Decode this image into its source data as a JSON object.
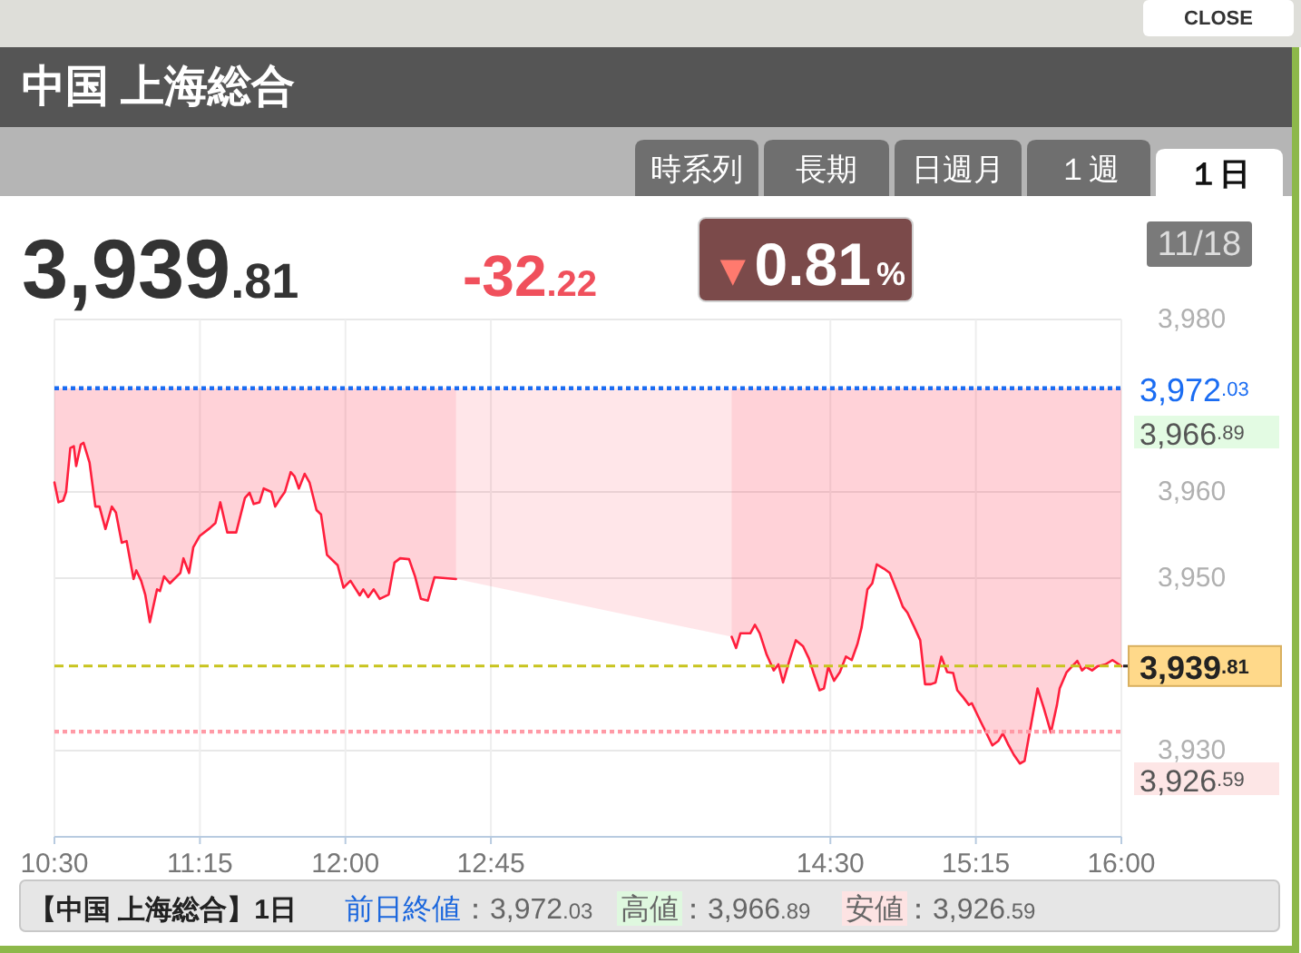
{
  "chart_data": {
    "type": "line",
    "title": "中国 上海総合",
    "x": [
      10.5,
      10.521,
      10.545,
      10.56,
      10.582,
      10.6,
      10.612,
      10.636,
      10.65,
      10.681,
      10.711,
      10.732,
      10.763,
      10.796,
      10.817,
      10.847,
      10.872,
      10.908,
      10.922,
      10.947,
      10.968,
      10.992,
      11.029,
      11.044,
      11.065,
      11.095,
      11.149,
      11.165,
      11.194,
      11.216,
      11.249,
      11.301,
      11.33,
      11.355,
      11.391,
      11.437,
      11.482,
      11.506,
      11.527,
      11.557,
      11.579,
      11.618,
      11.638,
      11.663,
      11.688,
      11.718,
      11.738,
      11.76,
      11.79,
      11.815,
      11.851,
      11.874,
      11.905,
      11.96,
      11.99,
      12.026,
      12.074,
      12.092,
      12.117,
      12.146,
      12.177,
      12.223,
      12.253,
      12.282,
      12.328,
      12.359,
      12.389,
      12.425,
      12.459,
      12.57,
      13.25,
      13.991,
      14.014,
      14.036,
      14.087,
      14.111,
      14.136,
      14.172,
      14.208,
      14.232,
      14.256,
      14.292,
      14.322,
      14.359,
      14.389,
      14.413,
      14.444,
      14.467,
      14.489,
      14.519,
      14.549,
      14.58,
      14.61,
      14.64,
      14.661,
      14.691,
      14.716,
      14.739,
      14.776,
      14.806,
      14.843,
      14.873,
      14.897,
      14.933,
      14.963,
      14.988,
      15.018,
      15.042,
      15.072,
      15.102,
      15.133,
      15.154,
      15.184,
      15.214,
      15.229,
      15.274,
      15.305,
      15.335,
      15.365,
      15.389,
      15.417,
      15.446,
      15.477,
      15.501,
      15.532,
      15.568,
      15.598,
      15.637,
      15.668,
      15.682,
      15.718,
      15.743,
      15.773,
      15.797,
      15.818,
      15.849,
      15.879,
      15.918,
      15.954,
      16.0
    ],
    "series": [
      {
        "color": "#ff1f3d",
        "values": [
          3961.1,
          3958.8,
          3959.0,
          3960.0,
          3965.1,
          3965.3,
          3963.0,
          3965.5,
          3965.7,
          3963.4,
          3958.3,
          3958.3,
          3955.7,
          3958.3,
          3957.6,
          3954.1,
          3954.3,
          3949.9,
          3950.9,
          3949.7,
          3948.1,
          3944.9,
          3948.7,
          3948.5,
          3950.2,
          3949.4,
          3950.6,
          3952.3,
          3950.6,
          3953.6,
          3954.9,
          3955.8,
          3956.4,
          3958.8,
          3955.3,
          3955.3,
          3959.3,
          3959.9,
          3958.6,
          3958.8,
          3960.4,
          3960.0,
          3958.3,
          3959.2,
          3960.0,
          3962.3,
          3961.8,
          3960.4,
          3962.1,
          3961.1,
          3957.9,
          3957.4,
          3952.7,
          3951.5,
          3948.9,
          3949.7,
          3948.0,
          3948.7,
          3947.8,
          3948.7,
          3947.6,
          3948.1,
          3951.8,
          3952.3,
          3952.2,
          3950.2,
          3947.6,
          3947.4,
          3950.1,
          3949.9,
          null,
          3943.2,
          3941.9,
          3943.6,
          3943.6,
          3944.6,
          3943.6,
          3941.1,
          3939.3,
          3940.0,
          3937.9,
          3940.7,
          3942.8,
          3942.1,
          3940.7,
          3939.0,
          3937.0,
          3937.2,
          3939.7,
          3938.1,
          3939.1,
          3940.9,
          3940.5,
          3942.4,
          3944.3,
          3948.7,
          3949.4,
          3951.6,
          3951.1,
          3950.6,
          3948.5,
          3946.7,
          3946.0,
          3944.3,
          3942.8,
          3937.7,
          3937.7,
          3937.9,
          3940.9,
          3939.1,
          3939.0,
          3937.0,
          3936.2,
          3935.3,
          3935.5,
          3933.4,
          3932.0,
          3930.6,
          3931.1,
          3932.0,
          3930.7,
          3929.5,
          3928.5,
          3928.8,
          3932.7,
          3937.2,
          3935.1,
          3932.1,
          3935.3,
          3937.2,
          3939.1,
          3939.7,
          3940.4,
          3939.3,
          3939.7,
          3939.3,
          3939.8,
          3940.0,
          3940.5,
          3939.8
        ],
        "lower": [
          3961.1,
          3958.8,
          3959.0,
          3960.0,
          3965.1,
          3965.3,
          3963.0,
          3965.5,
          3965.7,
          3963.4,
          3958.3,
          3958.3,
          3955.7,
          3958.3,
          3957.6,
          3954.1,
          3954.3,
          3949.9,
          3950.9,
          3949.7,
          3948.1,
          3944.9,
          3948.7,
          3948.5,
          3950.2,
          3949.4,
          3950.6,
          3952.3,
          3950.6,
          3953.6,
          3954.9,
          3955.8,
          3956.4,
          3958.8,
          3955.3,
          3955.3,
          3959.3,
          3959.9,
          3958.6,
          3958.8,
          3960.4,
          3960.0,
          3958.3,
          3959.2,
          3960.0,
          3962.3,
          3961.8,
          3960.4,
          3962.1,
          3961.1,
          3957.9,
          3957.4,
          3952.7,
          3951.5,
          3948.9,
          3949.7,
          3948.0,
          3948.7,
          3947.8,
          3948.7,
          3947.6,
          3948.1,
          3951.8,
          3952.3,
          3952.2,
          3950.2,
          3947.6,
          3947.4,
          3950.1,
          3949.9,
          null,
          3943.2,
          3941.9,
          3943.6,
          3943.6,
          3944.6,
          3943.6,
          3941.1,
          3939.3,
          3940.0,
          3937.9,
          3940.7,
          3942.8,
          3942.1,
          3940.7,
          3939.0,
          3937.0,
          3937.2,
          3939.7,
          3938.1,
          3939.1,
          3940.9,
          3940.5,
          3942.4,
          3944.3,
          3948.7,
          3949.4,
          3951.6,
          3951.1,
          3950.6,
          3948.5,
          3946.7,
          3946.0,
          3944.3,
          3942.8,
          3937.7,
          3937.7,
          3937.9,
          3940.9,
          3939.1,
          3939.0,
          3937.0,
          3936.2,
          3935.3,
          3935.5,
          3933.4,
          3932.0,
          3930.6,
          3931.1,
          3932.0,
          3930.7,
          3929.5,
          3928.5,
          3928.8,
          3932.7,
          3937.2,
          3935.1,
          3932.1,
          3935.3,
          3937.2,
          3939.1,
          3939.7,
          3940.4,
          3939.3,
          3939.7,
          3939.3,
          3939.8,
          3940.0,
          3940.5,
          3939.8
        ],
        "upper": [
          3972.03,
          3972.03,
          3972.03,
          3972.03,
          3972.03,
          3972.03,
          3972.03,
          3972.03,
          3972.03,
          3972.03,
          3972.03,
          3972.03,
          3972.03,
          3972.03,
          3972.03,
          3972.03,
          3972.03,
          3972.03,
          3972.03,
          3972.03,
          3972.03,
          3972.03,
          3972.03,
          3972.03,
          3972.03,
          3972.03,
          3972.03,
          3972.03,
          3972.03,
          3972.03,
          3972.03,
          3972.03,
          3972.03,
          3972.03,
          3972.03,
          3972.03,
          3972.03,
          3972.03,
          3972.03,
          3972.03,
          3972.03,
          3972.03,
          3972.03,
          3972.03,
          3972.03,
          3972.03,
          3972.03,
          3972.03,
          3972.03,
          3972.03,
          3972.03,
          3972.03,
          3972.03,
          3972.03,
          3972.03,
          3972.03,
          3972.03,
          3972.03,
          3972.03,
          3972.03,
          3972.03,
          3972.03,
          3972.03,
          3972.03,
          3972.03,
          3972.03,
          3972.03,
          3972.03,
          3972.03,
          3972.03,
          null,
          3972.03,
          3972.03,
          3972.03,
          3972.03,
          3972.03,
          3972.03,
          3972.03,
          3972.03,
          3972.03,
          3972.03,
          3972.03,
          3972.03,
          3972.03,
          3972.03,
          3972.03,
          3972.03,
          3972.03,
          3972.03,
          3972.03,
          3972.03,
          3972.03,
          3972.03,
          3972.03,
          3972.03,
          3972.03,
          3972.03,
          3972.03,
          3972.03,
          3972.03,
          3972.03,
          3972.03,
          3972.03,
          3972.03,
          3972.03,
          3972.03,
          3972.03,
          3972.03,
          3972.03,
          3972.03,
          3972.03,
          3972.03,
          3972.03,
          3972.03,
          3972.03,
          3972.03,
          3972.03,
          3972.03,
          3972.03,
          3972.03,
          3972.03,
          3972.03,
          3972.03,
          3972.03,
          3972.03,
          3972.03,
          3972.03,
          3972.03,
          3972.03,
          3972.03,
          3972.03,
          3972.03,
          3972.03,
          3972.03,
          3972.03,
          3972.03,
          3972.03,
          3972.03,
          3972.03,
          3972.03
        ]
      }
    ],
    "xlim": [
      10.5,
      16
    ],
    "xticks": [
      {
        "value": 10.5,
        "label": "10:30"
      },
      {
        "value": 11.25,
        "label": "11:15"
      },
      {
        "value": 12,
        "label": "12:00"
      },
      {
        "value": 12.75,
        "label": "12:45"
      },
      {
        "value": 14.5,
        "label": "14:30"
      },
      {
        "value": 15.25,
        "label": "15:15"
      },
      {
        "value": 16,
        "label": "16:00"
      }
    ],
    "ylim": [
      3920,
      3980
    ],
    "yticks": [
      {
        "value": 3930,
        "label": "3,930"
      },
      {
        "value": 3950,
        "label": "3,950"
      },
      {
        "value": 3960,
        "label": "3,960"
      },
      {
        "value": 3980,
        "label": "3,980"
      }
    ],
    "grid": true,
    "ref_lines": [
      {
        "axis": "y",
        "value": 3972.03,
        "label": "3,972.03",
        "color": "#1a6cf2",
        "line_style": "dotted"
      },
      {
        "axis": "y",
        "value": 3939.81,
        "label": "3,939.81",
        "color": "#c8c41e",
        "line_style": "dashed"
      },
      {
        "axis": "y",
        "value": 3932.2,
        "color": "#ff9aa6",
        "line_style": "dotted"
      }
    ],
    "annotations": [
      "CLOSE",
      "時系列",
      "長期",
      "日週月",
      "１週",
      "１日",
      "3,939.81",
      "-32.22",
      "▼0.81%",
      "11/18",
      "【中国 上海総合】1日",
      "前日終値：3,972.03",
      "高値：3,966.89",
      "安値：3,926.59",
      "3,966.89",
      "3,926.59"
    ]
  }
}
